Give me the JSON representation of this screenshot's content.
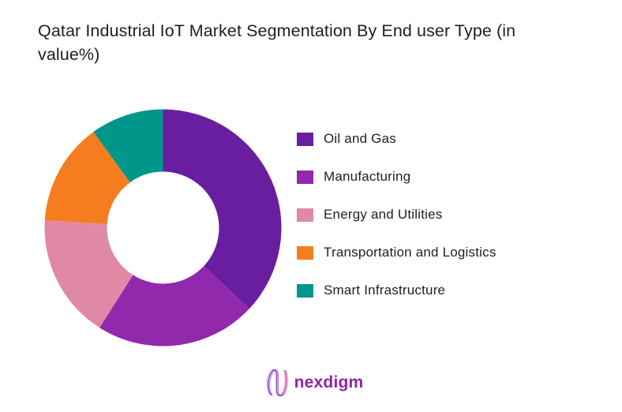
{
  "title": {
    "full": "Qatar Industrial IoT Market Segmentation By End user Type (in value%)",
    "lines": [
      "Qatar Industrial IoT Market Segmentation By End user Type (in",
      "value%)"
    ]
  },
  "chart_data": {
    "type": "pie",
    "subtype": "donut",
    "title": "Qatar Industrial IoT Market Segmentation By End user Type (in value%)",
    "unit": "value %",
    "categories": [
      "Oil and Gas",
      "Manufacturing",
      "Energy and Utilities",
      "Transportation and Logistics",
      "Smart Infrastructure"
    ],
    "values": [
      37,
      22,
      17,
      14,
      10
    ],
    "colors": [
      "#691EA0",
      "#9228AC",
      "#E089A4",
      "#F57D20",
      "#009689"
    ],
    "start_angle_deg": 0,
    "direction": "clockwise",
    "inner_radius_ratio": 0.473,
    "legend_position": "right",
    "data_labels_shown": false
  },
  "footer": {
    "brand": "nexdigm",
    "brand_color": "#8E24AA"
  },
  "colors": {
    "background": "#FFFFFF",
    "text": "#1F1F1F"
  }
}
